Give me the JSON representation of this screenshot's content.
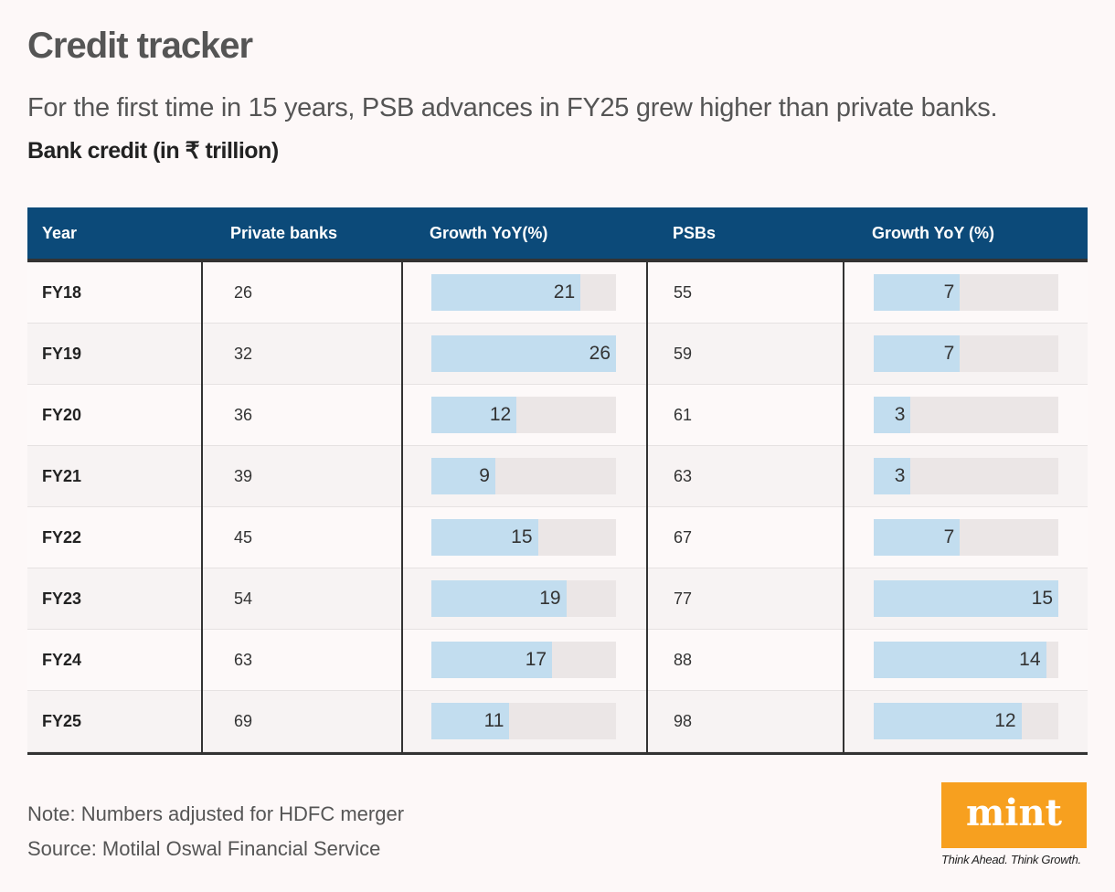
{
  "title": "Credit tracker",
  "subtitle": "For the first time in 15 years, PSB advances in FY25 grew higher than private banks.",
  "unit_label": "Bank credit (in ₹ trillion)",
  "chart_data": {
    "type": "table",
    "columns": [
      "Year",
      "Private banks",
      "Growth YoY(%)",
      "PSBs",
      "Growth YoY (%)"
    ],
    "rows": [
      {
        "year": "FY18",
        "private": "26",
        "private_growth": 21,
        "psb": "55",
        "psb_growth": 7
      },
      {
        "year": "FY19",
        "private": "32",
        "private_growth": 26,
        "psb": "59",
        "psb_growth": 7
      },
      {
        "year": "FY20",
        "private": "36",
        "private_growth": 12,
        "psb": "61",
        "psb_growth": 3
      },
      {
        "year": "FY21",
        "private": "39",
        "private_growth": 9,
        "psb": "63",
        "psb_growth": 3
      },
      {
        "year": "FY22",
        "private": "45",
        "private_growth": 15,
        "psb": "67",
        "psb_growth": 7
      },
      {
        "year": "FY23",
        "private": "54",
        "private_growth": 19,
        "psb": "77",
        "psb_growth": 15
      },
      {
        "year": "FY24",
        "private": "63",
        "private_growth": 17,
        "psb": "88",
        "psb_growth": 14
      },
      {
        "year": "FY25",
        "private": "69",
        "private_growth": 11,
        "psb": "98",
        "psb_growth": 12
      }
    ],
    "private_growth_max": 26,
    "psb_growth_max": 15,
    "colors": {
      "header": "#0c4a79",
      "bar": "#c2ddef",
      "track": "#ebe6e6"
    }
  },
  "note": "Note: Numbers adjusted for HDFC merger",
  "source": "Source: Motilal Oswal Financial Service",
  "logo": {
    "text": "mint",
    "tagline": "Think Ahead. Think Growth.",
    "color": "#f7a01f"
  }
}
